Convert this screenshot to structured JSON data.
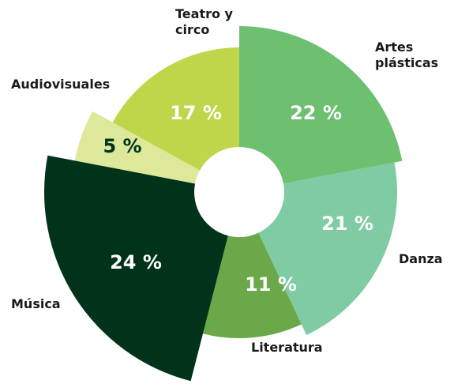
{
  "chart_data": {
    "type": "pie",
    "categories": [
      "Artes plásticas",
      "Danza",
      "Literatura",
      "Música",
      "Audiovisuales",
      "Teatro y circo"
    ],
    "values": [
      22,
      21,
      11,
      24,
      5,
      17
    ],
    "value_labels": [
      "22 %",
      "21 %",
      "11 %",
      "24 %",
      "5 %",
      "17 %"
    ],
    "colors": [
      "#6cc070",
      "#7fcba3",
      "#6aa84a",
      "#00331a",
      "#dde89a",
      "#c0d64a"
    ]
  }
}
